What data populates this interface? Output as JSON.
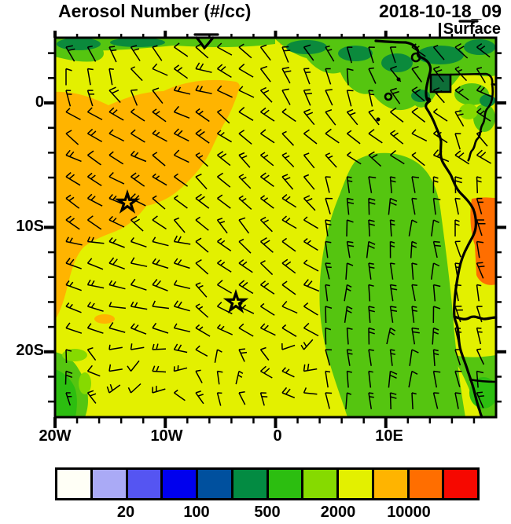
{
  "header": {
    "title": "Aerosol Number (#/cc)",
    "datetime": "2018-10-18_09",
    "level": "Surface"
  },
  "axes": {
    "x": {
      "tick_labels": [
        "20W",
        "10W",
        "0",
        "10E"
      ],
      "major_ticks_deg": [
        -20,
        -10,
        0,
        10
      ],
      "range_deg": [
        -20,
        20
      ],
      "minor_step_deg": 2
    },
    "y": {
      "tick_labels": [
        "0",
        "10S",
        "20S"
      ],
      "major_ticks_deg": [
        0,
        -10,
        -20
      ],
      "range_deg": [
        -25.3,
        5.3
      ],
      "minor_step_deg": 2
    }
  },
  "colorbar": {
    "colors": [
      "#FFFFF6",
      "#AAAAF6",
      "#5555F2",
      "#0000EE",
      "#00509E",
      "#038B42",
      "#2CBE10",
      "#86DA00",
      "#E3F000",
      "#FFB400",
      "#FF6E00",
      "#F60800"
    ],
    "tick_labels": [
      "20",
      "100",
      "500",
      "2000",
      "10000"
    ],
    "tick_indices": [
      2,
      4,
      6,
      8,
      10
    ],
    "levels": [
      10,
      20,
      50,
      100,
      200,
      500,
      1000,
      2000,
      5000,
      10000,
      20000
    ]
  },
  "colors": {
    "page_background": "#FFFFFF",
    "map_yellow": "#E3F000",
    "plume_orange": "#FFB400",
    "deep_orange": "#FF6E00",
    "green": "#55C510",
    "mid_green": "#2CBE10",
    "dark_green": "#0B8A3C",
    "teal_green": "#0E6E38",
    "yellow_green": "#86DA00",
    "line_black": "#000000"
  },
  "chart_data": {
    "type": "heatmap",
    "title": "Aerosol Number (#/cc)",
    "datetime": "2018-10-18_09",
    "level": "Surface",
    "units": "#/cc",
    "lon_range": [
      -20,
      20
    ],
    "lat_range": [
      -25,
      5
    ],
    "axis_major_step_deg": 10,
    "axis_minor_step_deg": 2,
    "color_levels": [
      10,
      20,
      50,
      100,
      200,
      500,
      1000,
      2000,
      5000,
      10000,
      20000
    ],
    "labeled_levels": [
      20,
      100,
      500,
      2000,
      10000
    ],
    "palette": [
      "#FFFFF6",
      "#AAAAF6",
      "#5555F2",
      "#0000EE",
      "#00509E",
      "#038B42",
      "#2CBE10",
      "#86DA00",
      "#E3F000",
      "#FFB400",
      "#FF6E00",
      "#F60800"
    ],
    "regions": [
      {
        "name": "northwest-aerosol-plume",
        "approx_lon": [
          -20,
          -2
        ],
        "approx_lat": [
          -17,
          1
        ],
        "value_range": "5000-10000",
        "color": "#FFB400"
      },
      {
        "name": "background-ocean",
        "approx_lon": [
          -20,
          20
        ],
        "approx_lat": [
          -25,
          5
        ],
        "value_range": "2000-5000",
        "color": "#E3F000"
      },
      {
        "name": "clean-marine-region-off-angola",
        "approx_lon": [
          4,
          16
        ],
        "approx_lat": [
          -25,
          -5
        ],
        "value_range": "500-2000",
        "color": "#55C510"
      },
      {
        "name": "gulf-of-guinea-coastal-band",
        "approx_lon": [
          -20,
          20
        ],
        "approx_lat": [
          1,
          5
        ],
        "value_range": "100-1000",
        "color": "#0B8A3C"
      },
      {
        "name": "central-african-coast-land-strip",
        "approx_lon": [
          17,
          20
        ],
        "approx_lat": [
          -9,
          -4
        ],
        "value_range": "5000-10000",
        "color": "#FF6E00"
      },
      {
        "name": "southwest-corner-patch",
        "approx_lon": [
          -20,
          -17
        ],
        "approx_lat": [
          -25,
          -20
        ],
        "value_range": "500-2000",
        "color": "#2CBE10"
      }
    ],
    "markers": [
      {
        "name": "station-star-1",
        "approx_lon": -13.4,
        "approx_lat": -8.0
      },
      {
        "name": "station-star-2",
        "approx_lon": -3.6,
        "approx_lat": -16.0
      }
    ],
    "overlay": "wind barbs on ~2 degree grid",
    "legend_position": "bottom",
    "grid": "off"
  }
}
